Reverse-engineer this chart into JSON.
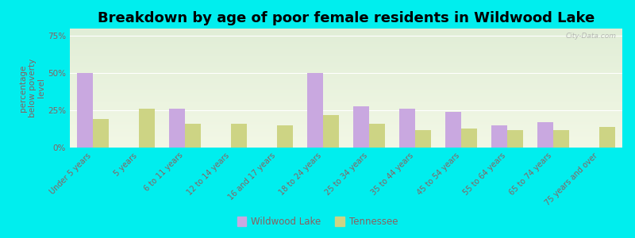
{
  "title": "Breakdown by age of poor female residents in Wildwood Lake",
  "ylabel": "percentage\nbelow poverty\nlevel",
  "categories": [
    "Under 5 years",
    "5 years",
    "6 to 11 years",
    "12 to 14 years",
    "16 and 17 years",
    "18 to 24 years",
    "25 to 34 years",
    "35 to 44 years",
    "45 to 54 years",
    "55 to 64 years",
    "65 to 74 years",
    "75 years and over"
  ],
  "wildwood_values": [
    50,
    0,
    26,
    0,
    0,
    50,
    28,
    26,
    24,
    15,
    17,
    0
  ],
  "tennessee_values": [
    19,
    26,
    16,
    16,
    15,
    22,
    16,
    12,
    13,
    12,
    12,
    14
  ],
  "wildwood_color": "#c9a8e0",
  "tennessee_color": "#cdd484",
  "outer_bg": "#00eeee",
  "ylim": [
    0,
    80
  ],
  "yticks": [
    0,
    25,
    50,
    75
  ],
  "ytick_labels": [
    "0%",
    "25%",
    "50%",
    "75%"
  ],
  "title_fontsize": 13,
  "label_fontsize": 7,
  "ylabel_fontsize": 7.5,
  "tick_color": "#8b6060",
  "watermark": "City-Data.com",
  "legend_labels": [
    "Wildwood Lake",
    "Tennessee"
  ]
}
